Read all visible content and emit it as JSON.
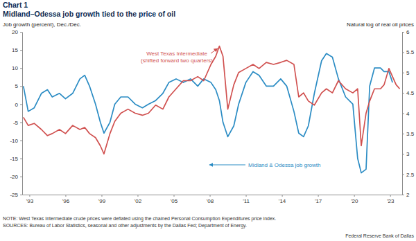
{
  "chart_data": {
    "type": "line",
    "title": "Chart 1",
    "subtitle": "Midland–Odessa job growth tied to the price of oil",
    "ylabel": "Job growth (percent), Dec./Dec.",
    "y2label": "Natural log of real oil prices",
    "annotations": [
      "(shifted forward two quarters)"
    ],
    "footnotes": [
      "NOTE: West Texas Intermediate crude prices were deflated using the chained Personal Consumption Expenditures price index.",
      "SOURCES: Bureau of Labor Statistics, seasonal and other adjustments by the Dallas Fed; Department of Energy."
    ],
    "credit": "Federal Reserve Bank of Dallas",
    "x": [
      1992.5,
      1992.9,
      1993.4,
      1994.0,
      1994.5,
      1994.9,
      1995.5,
      1996.0,
      1996.6,
      1997.2,
      1997.6,
      1998.0,
      1998.5,
      1998.9,
      1999.2,
      1999.7,
      2000.1,
      2000.6,
      2001.2,
      2001.8,
      2002.4,
      2002.9,
      2003.5,
      2004.1,
      2004.6,
      2005.2,
      2005.8,
      2006.4,
      2007.0,
      2007.5,
      2008.1,
      2008.5,
      2008.8,
      2009.1,
      2009.5,
      2010.0,
      2010.4,
      2011.0,
      2011.6,
      2012.1,
      2012.7,
      2013.3,
      2013.9,
      2014.4,
      2015.0,
      2015.4,
      2015.8,
      2016.2,
      2016.7,
      2017.3,
      2017.7,
      2018.2,
      2018.7,
      2019.3,
      2019.9,
      2020.3,
      2020.6,
      2021.0,
      2021.3,
      2021.7,
      2022.2,
      2022.5,
      2022.9,
      2023.2,
      2023.5,
      2023.8
    ],
    "series": [
      {
        "name": "Midland & Odessa job growth",
        "color": "#2b8cc4",
        "values": [
          5,
          -2,
          -1,
          3,
          4,
          2,
          3,
          1.5,
          3,
          7,
          8,
          5,
          0,
          -5,
          -8,
          -5,
          0,
          2,
          2,
          0,
          -1,
          0,
          1,
          3,
          6,
          7,
          6,
          7,
          5,
          7,
          6,
          4,
          1,
          -5,
          -9,
          -6,
          0,
          6,
          9,
          8,
          5,
          5,
          7,
          5,
          -2,
          -8,
          -9,
          -6,
          3,
          12,
          14,
          13,
          7,
          2,
          0,
          -15,
          -19,
          -18,
          5,
          10,
          10,
          9,
          9,
          6,
          null,
          null
        ]
      },
      {
        "name": "West Texas Intermediate",
        "color": "#d0504f",
        "axis": "y2",
        "values": [
          3.9,
          3.7,
          3.75,
          3.6,
          3.45,
          3.5,
          3.6,
          3.5,
          3.7,
          3.6,
          3.65,
          3.5,
          3.4,
          3.2,
          3.0,
          3.5,
          3.8,
          4.0,
          4.1,
          4.0,
          3.95,
          4.0,
          4.2,
          4.1,
          4.4,
          4.6,
          4.8,
          4.8,
          4.9,
          4.8,
          5.2,
          5.4,
          5.65,
          5.4,
          4.1,
          4.7,
          5.0,
          5.1,
          5.2,
          5.1,
          5.25,
          5.2,
          5.25,
          5.3,
          5.2,
          4.4,
          4.5,
          4.3,
          4.2,
          4.5,
          4.6,
          4.5,
          4.8,
          4.6,
          4.5,
          4.6,
          3.2,
          4.0,
          4.3,
          4.6,
          4.6,
          4.7,
          5.1,
          4.9,
          4.7,
          4.6
        ]
      }
    ],
    "xlim": [
      1992.4,
      2024
    ],
    "xticks": [
      {
        "value": 1993,
        "label": "'93"
      },
      {
        "value": 1996,
        "label": "'96"
      },
      {
        "value": 1999,
        "label": "'99"
      },
      {
        "value": 2002,
        "label": "'02"
      },
      {
        "value": 2005,
        "label": "'05"
      },
      {
        "value": 2008,
        "label": "'08"
      },
      {
        "value": 2011,
        "label": "'11"
      },
      {
        "value": 2014,
        "label": "'14"
      },
      {
        "value": 2017,
        "label": "'17"
      },
      {
        "value": 2020,
        "label": "'20"
      },
      {
        "value": 2023,
        "label": "'23"
      }
    ],
    "ylim": [
      -25,
      20
    ],
    "yticks": [
      -25,
      -20,
      -15,
      -10,
      -5,
      0,
      5,
      10,
      15,
      20
    ],
    "y2lim": [
      2,
      6
    ],
    "y2ticks": [
      2,
      2.5,
      3,
      3.5,
      4,
      4.5,
      5,
      5.5,
      6
    ],
    "grid": false
  }
}
